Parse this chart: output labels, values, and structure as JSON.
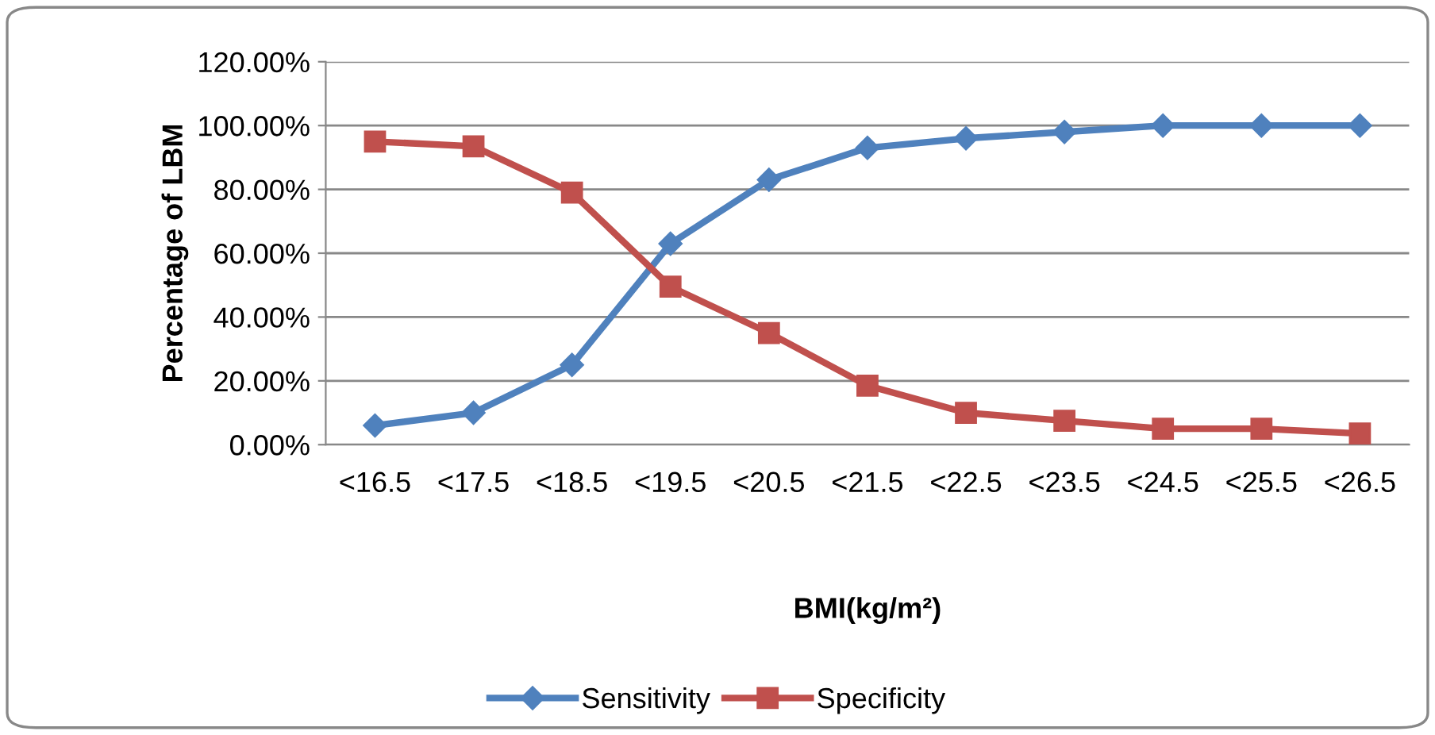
{
  "chart_data": {
    "type": "line",
    "xlabel": "BMI(kg/m²)",
    "ylabel": "Percentage of LBM",
    "categories": [
      "<16.5",
      "<17.5",
      "<18.5",
      "<19.5",
      "<20.5",
      "<21.5",
      "<22.5",
      "<23.5",
      "<24.5",
      "<25.5",
      "<26.5"
    ],
    "series": [
      {
        "name": "Sensitivity",
        "color": "#4f81bd",
        "marker": "diamond",
        "values": [
          6,
          10,
          25,
          63,
          83,
          93,
          96,
          98,
          100,
          100,
          100
        ]
      },
      {
        "name": "Specificity",
        "color": "#c0504d",
        "marker": "square",
        "values": [
          95,
          93.5,
          79,
          49.5,
          35,
          18.5,
          10,
          7.5,
          5,
          5,
          3.5
        ]
      }
    ],
    "ylim": [
      0,
      120
    ],
    "yticks": [
      {
        "value": 0,
        "label": "0.00%"
      },
      {
        "value": 20,
        "label": "20.00%"
      },
      {
        "value": 40,
        "label": "40.00%"
      },
      {
        "value": 60,
        "label": "60.00%"
      },
      {
        "value": 80,
        "label": "80.00%"
      },
      {
        "value": 100,
        "label": "100.00%"
      },
      {
        "value": 120,
        "label": "120.00%"
      }
    ],
    "grid": "y",
    "legend": "bottom",
    "line_style": "solid"
  }
}
